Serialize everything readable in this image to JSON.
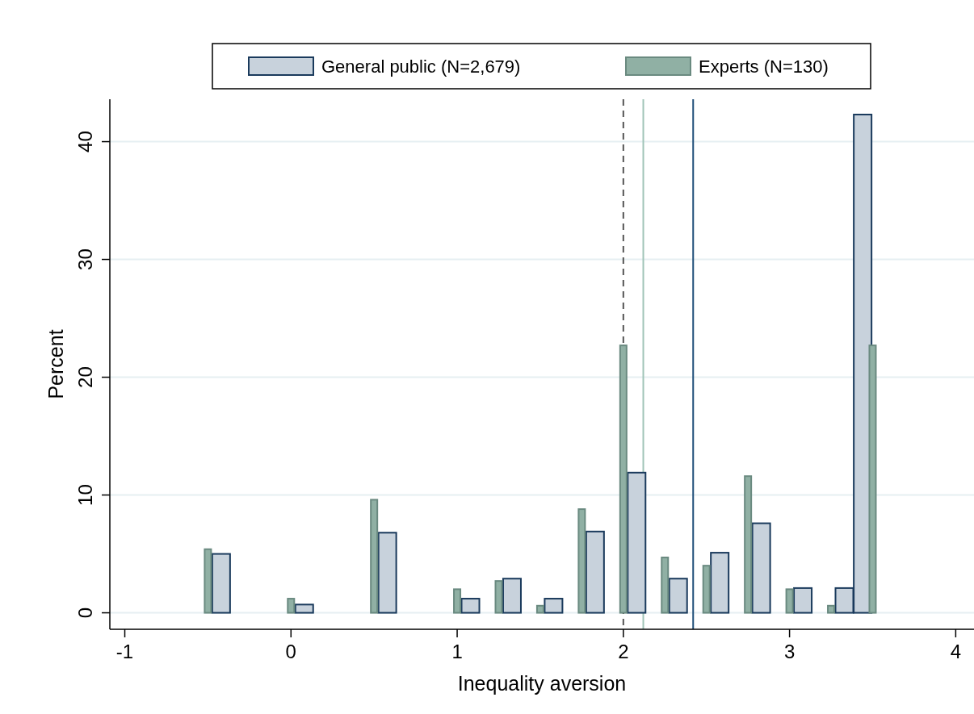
{
  "chart_data": {
    "type": "bar",
    "xlabel": "Inequality aversion",
    "ylabel": "Percent",
    "xlim": [
      -1.09,
      4.11
    ],
    "xticks": [
      -1,
      0,
      1,
      2,
      3,
      4
    ],
    "ylim": [
      -1.4,
      43.6
    ],
    "yticks": [
      0,
      10,
      20,
      30,
      40
    ],
    "grid": "y",
    "legend": "top",
    "series": [
      {
        "name": "General public (N=2,679)",
        "color": "#c8d2dc",
        "x": [
          -0.42,
          0.08,
          0.58,
          1.08,
          1.33,
          1.58,
          1.83,
          2.08,
          2.33,
          2.58,
          2.83,
          3.08,
          3.33,
          3.44
        ],
        "values": [
          5.0,
          0.7,
          6.8,
          1.2,
          2.9,
          1.2,
          6.9,
          11.9,
          2.9,
          5.1,
          7.6,
          2.1,
          2.1,
          42.3
        ]
      },
      {
        "name": "Experts (N=130)",
        "color": "#90b0a4",
        "x": [
          -0.5,
          0,
          0.5,
          1,
          1.25,
          1.5,
          1.75,
          2,
          2.25,
          2.5,
          2.75,
          3,
          3.25,
          3.5
        ],
        "values": [
          5.4,
          1.2,
          9.6,
          2.0,
          2.7,
          0.6,
          8.8,
          22.7,
          4.7,
          4.0,
          11.6,
          2.0,
          0.6,
          22.7
        ]
      }
    ],
    "ref_lines": [
      {
        "axis": "x",
        "value": 2,
        "color": "#555555",
        "line_style": "dashed"
      },
      {
        "axis": "x",
        "value": 2.12,
        "color": "#a0c4b8",
        "line_style": "solid"
      },
      {
        "axis": "x",
        "value": 2.42,
        "color": "#1f4e79",
        "line_style": "solid"
      }
    ]
  }
}
